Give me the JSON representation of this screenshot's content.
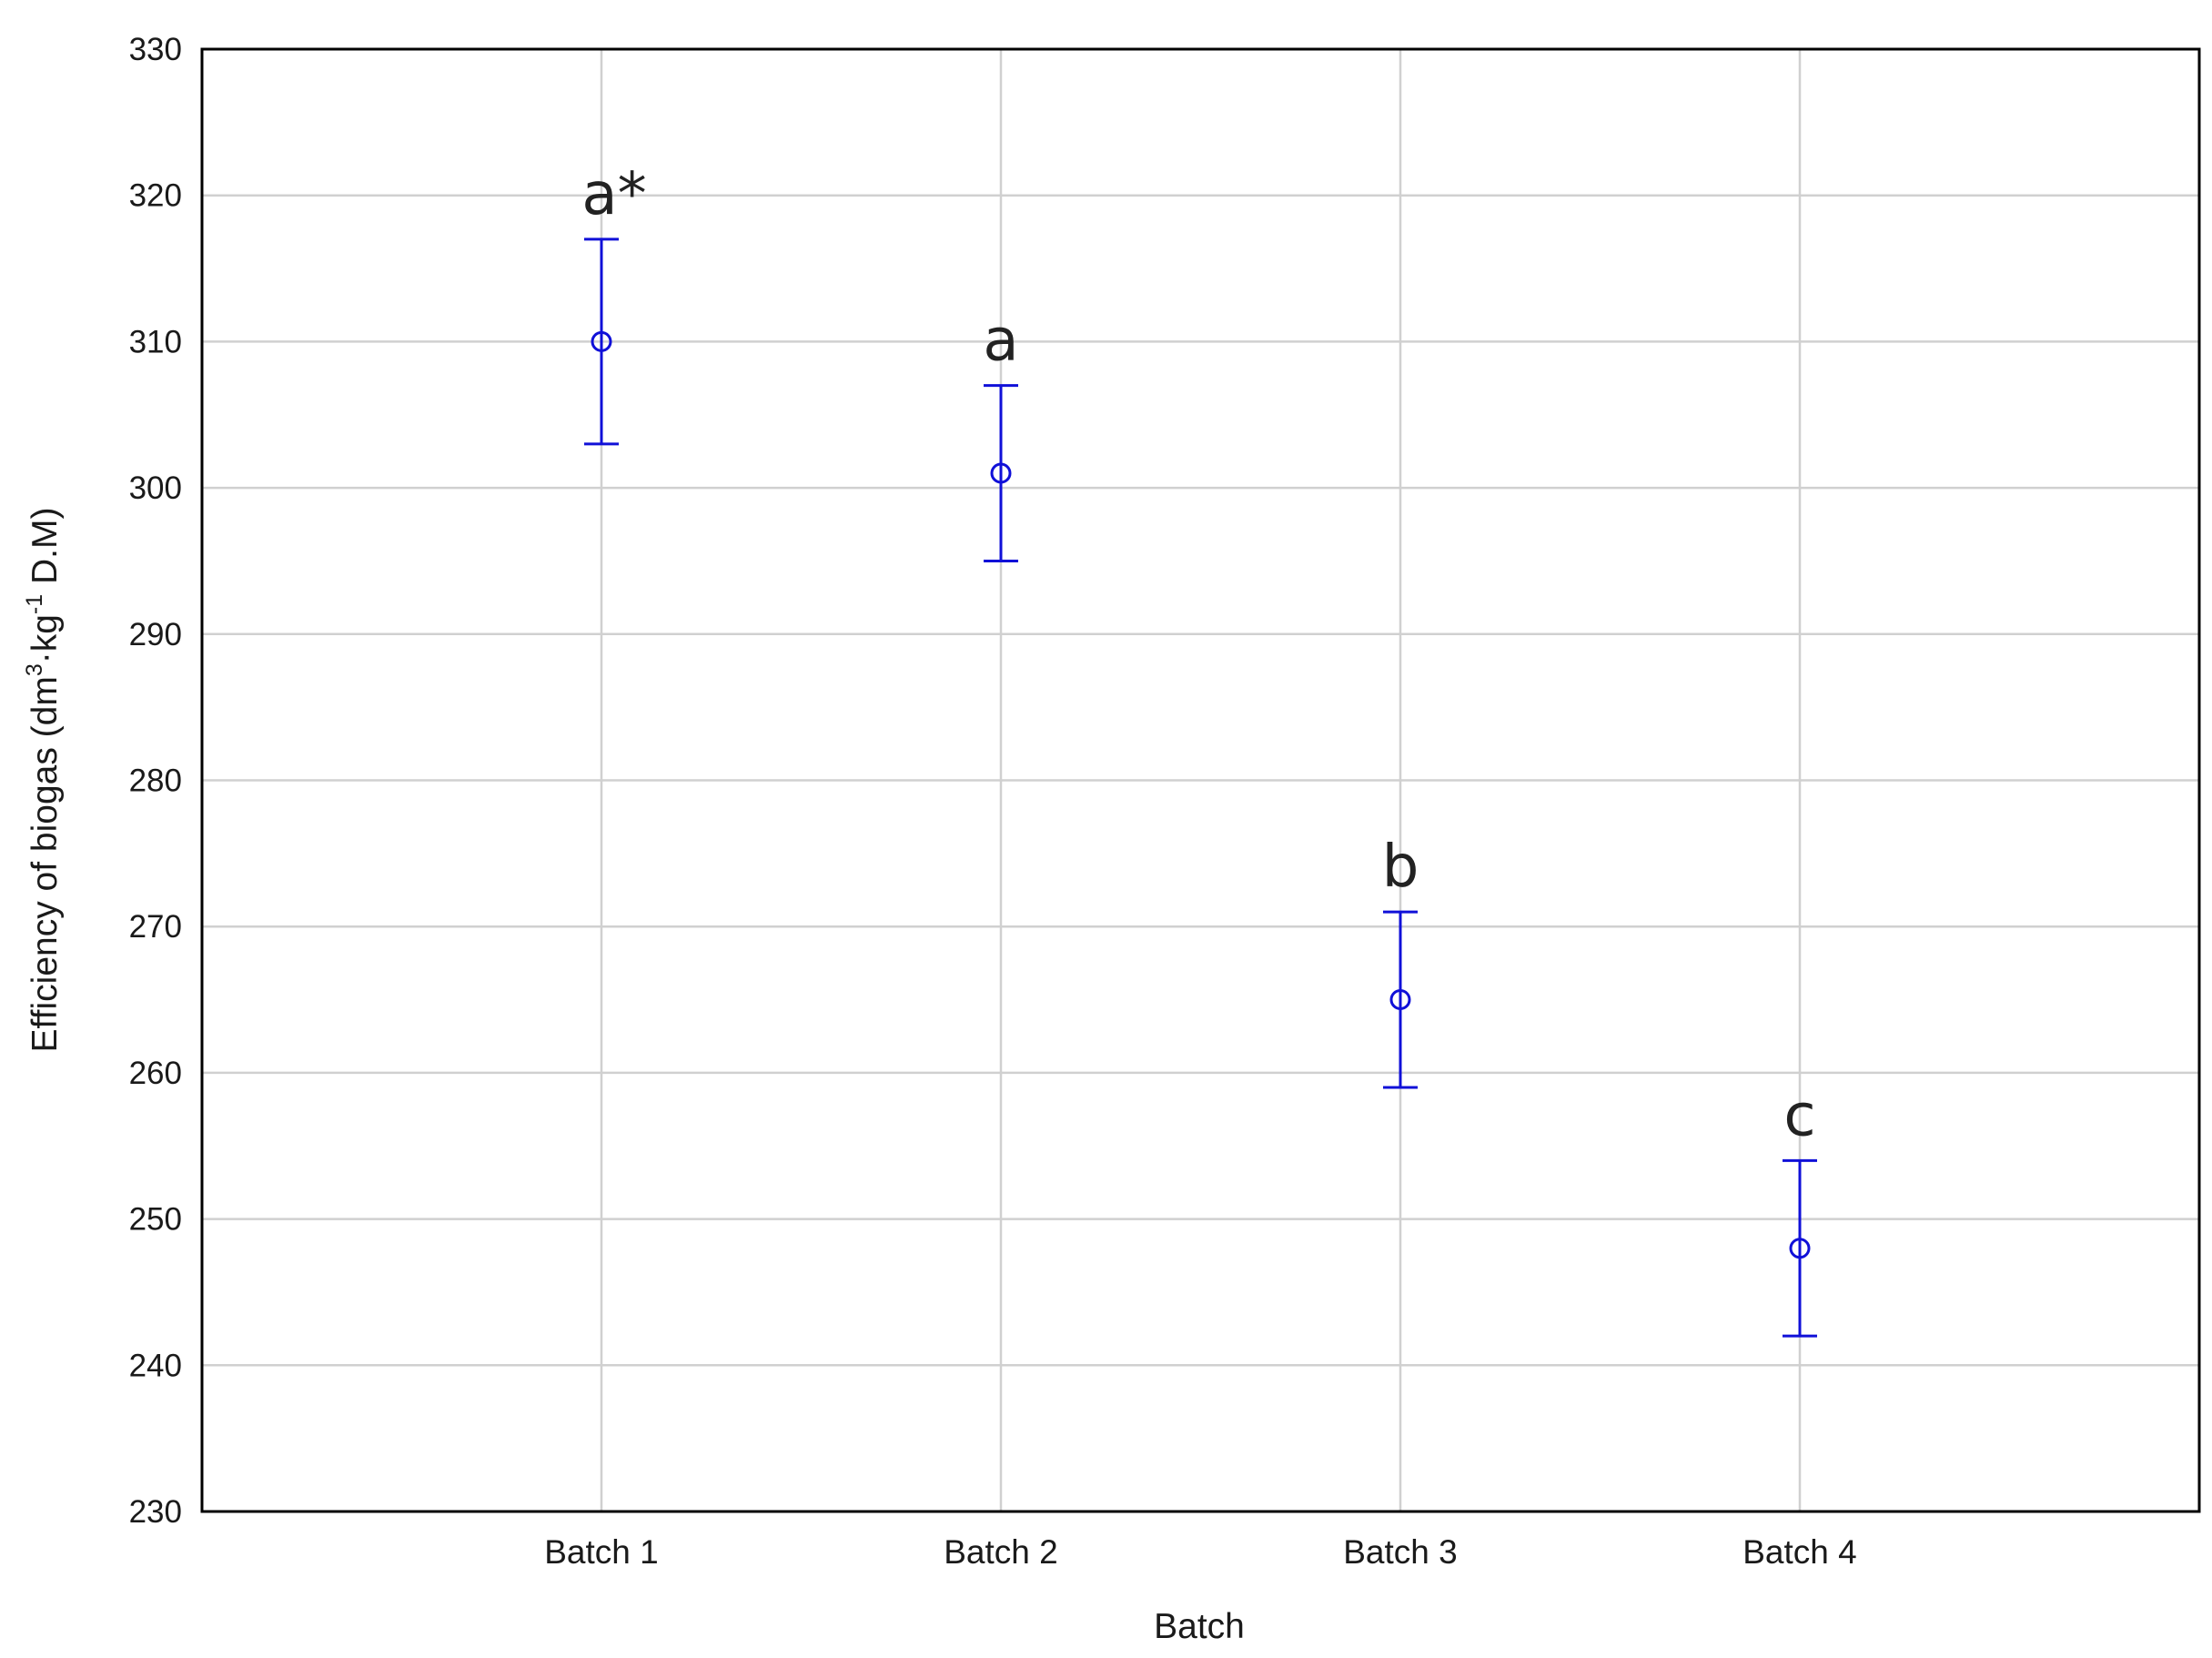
{
  "chart_data": {
    "type": "scatter",
    "title": "",
    "xlabel": "Batch",
    "ylabel": "Efficiency of biogas (dm³·kg⁻¹ D.M)",
    "ylabel_parts": {
      "pre": "Efficiency of biogas (dm",
      "sup1": "3",
      "mid": "·kg",
      "sup2": "-1",
      "post": " D.M)"
    },
    "categories": [
      "Batch 1",
      "Batch 2",
      "Batch 3",
      "Batch 4"
    ],
    "ylim": [
      230,
      330
    ],
    "yticks": [
      230,
      240,
      250,
      260,
      270,
      280,
      290,
      300,
      310,
      320,
      330
    ],
    "grid": true,
    "legend": "none",
    "series": [
      {
        "values": [
          310,
          301,
          265,
          248
        ],
        "error_low": [
          303,
          295,
          259,
          242
        ],
        "error_high": [
          317,
          307,
          271,
          254
        ],
        "significance_labels": [
          "a*",
          "a",
          "b",
          "c"
        ]
      }
    ],
    "colors": {
      "series": "#1010d8",
      "grid": "#d0d0d0",
      "frame": "#000000"
    }
  }
}
